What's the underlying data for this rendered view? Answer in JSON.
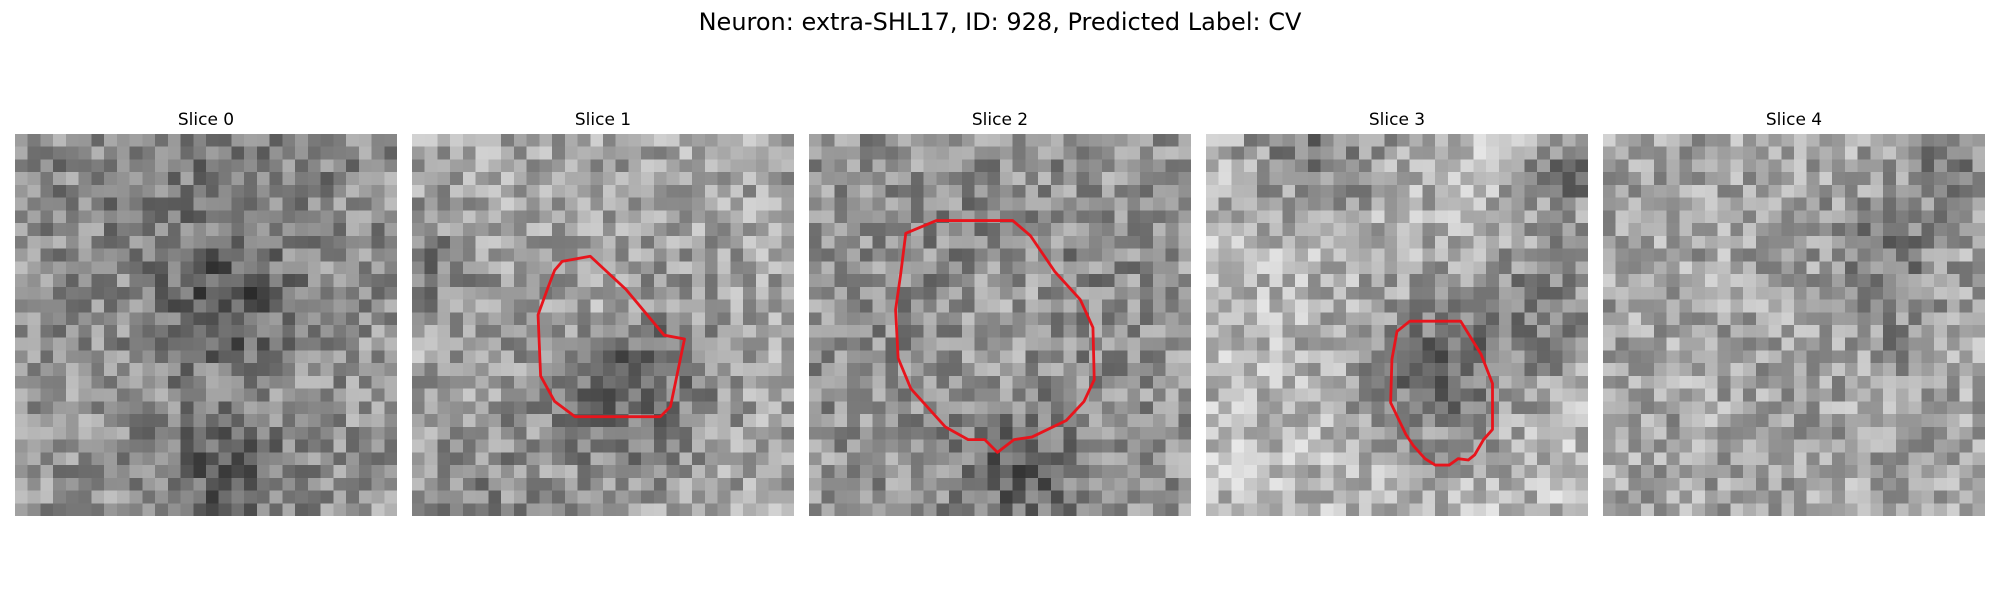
{
  "figure": {
    "title": "Neuron: extra-SHL17, ID: 928, Predicted Label: CV"
  },
  "panels": [
    {
      "title": "Slice 0",
      "contour": false,
      "base": 150,
      "spots": [
        [
          0.55,
          0.45,
          0.16,
          -60
        ],
        [
          0.55,
          0.88,
          0.16,
          -60
        ],
        [
          0.5,
          0.05,
          0.45,
          -25
        ]
      ]
    },
    {
      "title": "Slice 1",
      "contour": true,
      "base": 165,
      "spots": [
        [
          0.55,
          0.65,
          0.22,
          -65
        ],
        [
          0.05,
          0.35,
          0.12,
          -40
        ],
        [
          0.15,
          0.95,
          0.2,
          -30
        ],
        [
          0.48,
          0.45,
          0.1,
          25
        ]
      ]
    },
    {
      "title": "Slice 2",
      "contour": true,
      "base": 150,
      "spots": [
        [
          0.5,
          0.5,
          0.3,
          -45
        ],
        [
          0.5,
          0.5,
          0.2,
          55
        ],
        [
          0.55,
          0.9,
          0.15,
          -50
        ]
      ]
    },
    {
      "title": "Slice 3",
      "contour": true,
      "base": 185,
      "spots": [
        [
          0.6,
          0.62,
          0.22,
          -75
        ],
        [
          0.3,
          0.02,
          0.2,
          -60
        ],
        [
          0.95,
          0.1,
          0.12,
          -70
        ],
        [
          0.9,
          0.45,
          0.18,
          -55
        ]
      ]
    },
    {
      "title": "Slice 4",
      "contour": false,
      "base": 165,
      "spots": [
        [
          0.75,
          0.3,
          0.14,
          -45
        ],
        [
          0.9,
          0.05,
          0.1,
          -60
        ],
        [
          0.8,
          0.55,
          0.08,
          -35
        ]
      ]
    }
  ],
  "contour_style": {
    "color": "#e8141c"
  }
}
